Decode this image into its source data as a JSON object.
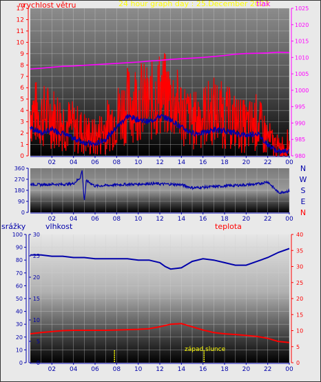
{
  "header": {
    "title": "24 hour graph day : 25.December 2023",
    "left_label": "rychlost větru",
    "right_label": "tlak",
    "corner_unit": "m"
  },
  "bottom_header": {
    "rain_label": "srážky",
    "humidity_label": "vlhkost",
    "temp_label": "teplota"
  },
  "annotation": {
    "sunset_label": "západ slunce"
  },
  "colors": {
    "wind": "#ff0000",
    "wind_dir": "#0000aa",
    "gust": "#0000aa",
    "pressure": "#ff00ff",
    "humidity": "#0000aa",
    "temperature": "#ff0000",
    "axis_red": "#ff0000",
    "axis_blue": "#0000aa",
    "axis_magenta": "#ff00ff",
    "title": "#ffff00",
    "sunrise_marker": "#ffff00"
  },
  "chart_data": [
    {
      "type": "line",
      "title": "24 hour graph day : 25.December 2023",
      "xlabel": "",
      "x_ticks": [
        "02",
        "04",
        "06",
        "08",
        "10",
        "12",
        "14",
        "16",
        "18",
        "20",
        "22",
        "00"
      ],
      "y_left": {
        "label": "rychlost větru",
        "range": [
          0,
          13
        ],
        "ticks": [
          "0",
          "1",
          "2",
          "3",
          "4",
          "5",
          "6",
          "7",
          "8",
          "9",
          "10",
          "11",
          "12",
          "13"
        ]
      },
      "y_right": {
        "label": "tlak",
        "range": [
          980,
          1025
        ],
        "ticks": [
          "980",
          "985",
          "990",
          "995",
          "1000",
          "1005",
          "1010",
          "1015",
          "1020",
          "1025"
        ]
      },
      "series": [
        {
          "x": [
            0,
            1,
            2,
            3,
            4,
            5,
            6,
            7,
            8,
            9,
            10,
            11,
            12,
            13,
            14,
            15,
            16,
            17,
            18,
            19,
            20,
            21,
            22,
            23,
            24
          ],
          "values": [
            1006.5,
            1006.7,
            1007.0,
            1007.3,
            1007.4,
            1007.6,
            1007.8,
            1008.0,
            1008.2,
            1008.4,
            1008.6,
            1008.9,
            1009.1,
            1009.4,
            1009.6,
            1009.8,
            1010.0,
            1010.3,
            1010.6,
            1011.0,
            1011.2,
            1011.3,
            1011.4,
            1011.6,
            1011.5
          ]
        },
        {
          "x": [
            0,
            1,
            2,
            3,
            4,
            5,
            6,
            7,
            8,
            9,
            10,
            11,
            12,
            13,
            14,
            15,
            16,
            17,
            18,
            19,
            20,
            21,
            22,
            23,
            24
          ],
          "values": [
            4.0,
            3.5,
            3.5,
            3.0,
            2.5,
            2.0,
            1.5,
            2.5,
            3.5,
            4.5,
            5.0,
            4.5,
            5.5,
            5.0,
            4.0,
            3.0,
            3.5,
            4.0,
            3.5,
            3.0,
            2.5,
            3.0,
            1.5,
            0.5,
            1.0
          ]
        },
        {
          "x": [
            0,
            1,
            2,
            3,
            4,
            5,
            6,
            7,
            8,
            9,
            10,
            11,
            12,
            13,
            14,
            15,
            16,
            17,
            18,
            19,
            20,
            21,
            22,
            23,
            24
          ],
          "values": [
            2.5,
            2.0,
            2.3,
            2.0,
            1.5,
            1.2,
            1.0,
            1.5,
            2.5,
            3.5,
            3.2,
            3.0,
            3.5,
            3.2,
            2.5,
            2.0,
            2.0,
            2.3,
            2.2,
            2.0,
            1.8,
            2.0,
            1.0,
            0.3,
            0.5
          ]
        }
      ]
    },
    {
      "type": "line",
      "title": "",
      "x_ticks": [
        "02",
        "04",
        "06",
        "08",
        "10",
        "12",
        "14",
        "16",
        "18",
        "20",
        "22",
        "00"
      ],
      "y_left": {
        "range": [
          0,
          360
        ],
        "ticks": [
          "0",
          "90",
          "180",
          "270",
          "360"
        ]
      },
      "right_labels": [
        "N",
        "W",
        "S",
        "E",
        "N"
      ],
      "series": [
        {
          "x": [
            0,
            1,
            2,
            3,
            4,
            4.6,
            4.8,
            5.0,
            5.2,
            6,
            7,
            8,
            9,
            10,
            11,
            12,
            13,
            14,
            15,
            16,
            17,
            18,
            19,
            20,
            21,
            22,
            23,
            24
          ],
          "values": [
            230,
            225,
            230,
            228,
            235,
            280,
            340,
            90,
            260,
            215,
            220,
            225,
            228,
            230,
            235,
            232,
            230,
            225,
            200,
            205,
            210,
            215,
            220,
            225,
            230,
            250,
            160,
            175
          ]
        }
      ]
    },
    {
      "type": "line",
      "title": "",
      "x_ticks": [
        "02",
        "04",
        "06",
        "08",
        "10",
        "12",
        "14",
        "16",
        "18",
        "20",
        "22",
        "00"
      ],
      "y_rain": {
        "label": "srážky",
        "range": [
          0,
          100
        ],
        "ticks": [
          "0",
          "10",
          "20",
          "30",
          "40",
          "50",
          "60",
          "70",
          "80",
          "90",
          "100"
        ]
      },
      "y_humidity": {
        "label": "vlhkost",
        "range": [
          0,
          30
        ],
        "ticks": [
          "0",
          "5",
          "10",
          "15",
          "20",
          "25",
          "30"
        ]
      },
      "y_temp": {
        "label": "teplota",
        "range": [
          0,
          40
        ],
        "ticks": [
          "0",
          "5",
          "10",
          "15",
          "20",
          "25",
          "30",
          "35",
          "40"
        ]
      },
      "series": [
        {
          "x": [
            0,
            1,
            2,
            3,
            4,
            5,
            6,
            7,
            8,
            9,
            10,
            11,
            12,
            12.5,
            13,
            14,
            15,
            16,
            17,
            18,
            19,
            20,
            21,
            22,
            23,
            24
          ],
          "values": [
            84,
            84,
            83,
            83,
            82,
            82,
            81,
            81,
            81,
            81,
            80,
            80,
            78,
            75,
            73,
            74,
            79,
            81,
            80,
            78,
            76,
            76,
            79,
            82,
            86,
            89
          ]
        },
        {
          "x": [
            0,
            1,
            2,
            3,
            4,
            5,
            6,
            7,
            8,
            9,
            10,
            11,
            12,
            13,
            14,
            15,
            16,
            17,
            18,
            19,
            20,
            21,
            22,
            23,
            24
          ],
          "values": [
            9.0,
            9.4,
            9.7,
            10.0,
            10.1,
            10.1,
            10.1,
            10.1,
            10.2,
            10.3,
            10.4,
            10.6,
            11.2,
            12.0,
            12.2,
            11.2,
            10.2,
            9.4,
            9.0,
            8.8,
            8.5,
            8.2,
            7.6,
            6.6,
            6.3
          ]
        }
      ]
    }
  ]
}
